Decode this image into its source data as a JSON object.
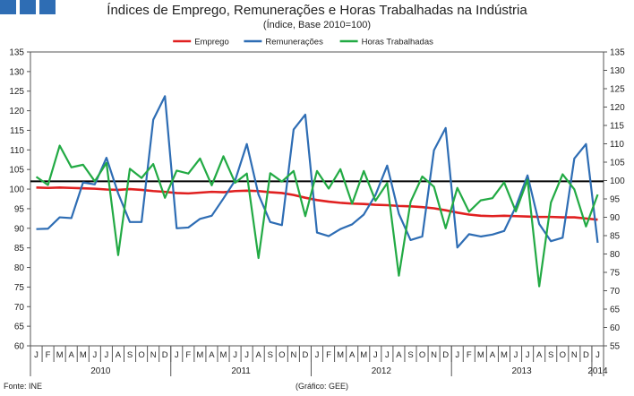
{
  "header": {
    "title": "Índices de Emprego, Remunerações e Horas Trabalhadas na Indústria",
    "subtitle": "(Índice, Base 2010=100)"
  },
  "footer": {
    "source": "Fonte: INE",
    "credit": "(Gráfico: GEE)"
  },
  "chart_data": {
    "type": "line",
    "month_labels": [
      "J",
      "F",
      "M",
      "A",
      "M",
      "J",
      "J",
      "A",
      "S",
      "O",
      "N",
      "D",
      "J",
      "F",
      "M",
      "A",
      "M",
      "J",
      "J",
      "A",
      "S",
      "O",
      "N",
      "D",
      "J",
      "F",
      "M",
      "A",
      "M",
      "J",
      "J",
      "A",
      "S",
      "O",
      "N",
      "D",
      "J",
      "F",
      "M",
      "A",
      "M",
      "J",
      "J",
      "A",
      "S",
      "O",
      "N",
      "D",
      "J"
    ],
    "years": [
      {
        "label": "2010",
        "start": 0,
        "count": 12
      },
      {
        "label": "2011",
        "start": 12,
        "count": 12
      },
      {
        "label": "2012",
        "start": 24,
        "count": 12
      },
      {
        "label": "2013",
        "start": 36,
        "count": 12
      },
      {
        "label": "2014",
        "start": 48,
        "count": 1
      }
    ],
    "y_left": {
      "min": 60,
      "max": 135,
      "step": 5
    },
    "y_right": {
      "min": 55,
      "max": 135,
      "step": 5
    },
    "reference_line": {
      "axis": "left",
      "value": 102,
      "color": "#000000"
    },
    "legend_position": "top",
    "series": [
      {
        "name": "Emprego",
        "axis": "left",
        "color": "#e02020",
        "values": [
          100.4,
          100.3,
          100.4,
          100.3,
          100.2,
          100.1,
          99.9,
          99.8,
          100.0,
          99.8,
          99.5,
          99.3,
          99.0,
          98.9,
          99.1,
          99.3,
          99.2,
          99.5,
          99.6,
          99.5,
          99.2,
          99.0,
          98.5,
          97.8,
          97.2,
          96.8,
          96.5,
          96.3,
          96.2,
          96.0,
          95.9,
          95.7,
          95.6,
          95.4,
          95.1,
          94.6,
          94.0,
          93.5,
          93.2,
          93.1,
          93.2,
          93.1,
          93.0,
          92.9,
          92.9,
          92.8,
          92.8,
          92.5,
          92.2
        ]
      },
      {
        "name": "Remunerações",
        "axis": "left",
        "color": "#2e6db4",
        "values": [
          89.8,
          89.9,
          92.8,
          92.6,
          101.7,
          101.2,
          108.0,
          98.9,
          91.6,
          91.6,
          117.7,
          123.7,
          90.0,
          90.2,
          92.4,
          93.2,
          97.6,
          102.2,
          111.5,
          98.6,
          91.6,
          90.8,
          115.2,
          119.0,
          88.9,
          88.0,
          89.8,
          91.0,
          93.5,
          98.5,
          106.0,
          93.7,
          87.0,
          87.9,
          109.9,
          115.6,
          85.1,
          88.5,
          87.9,
          88.4,
          89.3,
          95.5,
          103.5,
          91.1,
          86.7,
          87.6,
          107.8,
          111.5,
          86.3
        ]
      },
      {
        "name": "Horas Trabalhadas",
        "axis": "right",
        "color": "#22aa44",
        "values": [
          101.0,
          98.8,
          109.5,
          103.6,
          104.3,
          99.8,
          104.8,
          79.7,
          103.2,
          100.7,
          104.5,
          95.3,
          102.7,
          101.9,
          106.0,
          98.7,
          106.6,
          99.4,
          101.9,
          78.9,
          102.0,
          99.7,
          102.6,
          90.3,
          102.6,
          97.8,
          103.1,
          93.7,
          102.6,
          94.5,
          99.3,
          74.1,
          94.2,
          101.1,
          98.3,
          87.0,
          98.0,
          91.5,
          94.6,
          95.2,
          99.5,
          91.6,
          100.2,
          71.2,
          94.0,
          101.7,
          97.6,
          87.5,
          96.2
        ]
      }
    ]
  }
}
